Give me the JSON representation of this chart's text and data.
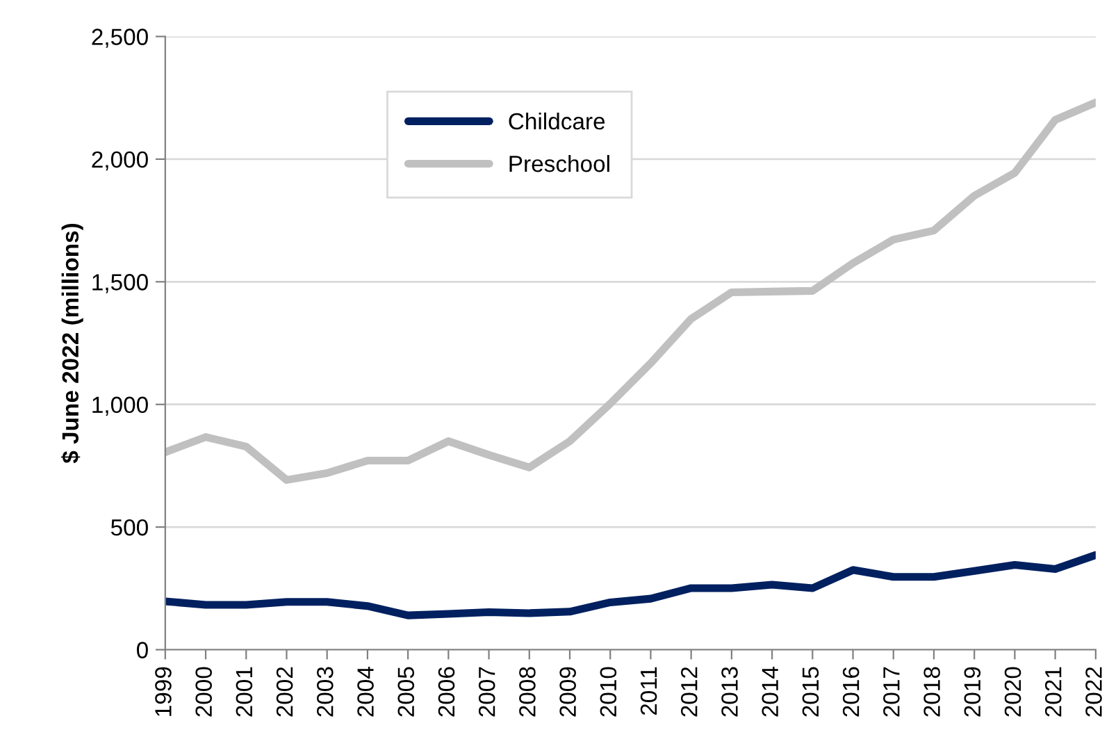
{
  "chart_data": {
    "type": "line",
    "ylabel": "$ June 2022 (millions)",
    "categories": [
      "1999",
      "2000",
      "2001",
      "2002",
      "2003",
      "2004",
      "2005",
      "2006",
      "2007",
      "2008",
      "2009",
      "2010",
      "2011",
      "2012",
      "2013",
      "2014",
      "2015",
      "2016",
      "2017",
      "2018",
      "2019",
      "2020",
      "2021",
      "2022"
    ],
    "series": [
      {
        "name": "Childcare",
        "color": "#002060",
        "values": [
          197,
          183,
          183,
          195,
          195,
          178,
          140,
          146,
          153,
          149,
          155,
          193,
          208,
          251,
          251,
          265,
          251,
          325,
          297,
          297,
          321,
          346,
          329,
          386
        ]
      },
      {
        "name": "Preschool",
        "color": "#c0c0c0",
        "values": [
          805,
          867,
          828,
          692,
          720,
          771,
          771,
          850,
          794,
          743,
          850,
          1003,
          1168,
          1349,
          1457,
          1460,
          1463,
          1576,
          1672,
          1709,
          1851,
          1944,
          2160,
          2231
        ]
      }
    ],
    "ylim": [
      0,
      2500
    ],
    "yticks": [
      {
        "value": 0,
        "label": "0"
      },
      {
        "value": 500,
        "label": "500"
      },
      {
        "value": 1000,
        "label": "1,000"
      },
      {
        "value": 1500,
        "label": "1,500"
      },
      {
        "value": 2000,
        "label": "2,000"
      },
      {
        "value": 2500,
        "label": "2,500"
      }
    ],
    "grid": "y",
    "legend": "top",
    "marker": "none",
    "line_style": "solid"
  }
}
